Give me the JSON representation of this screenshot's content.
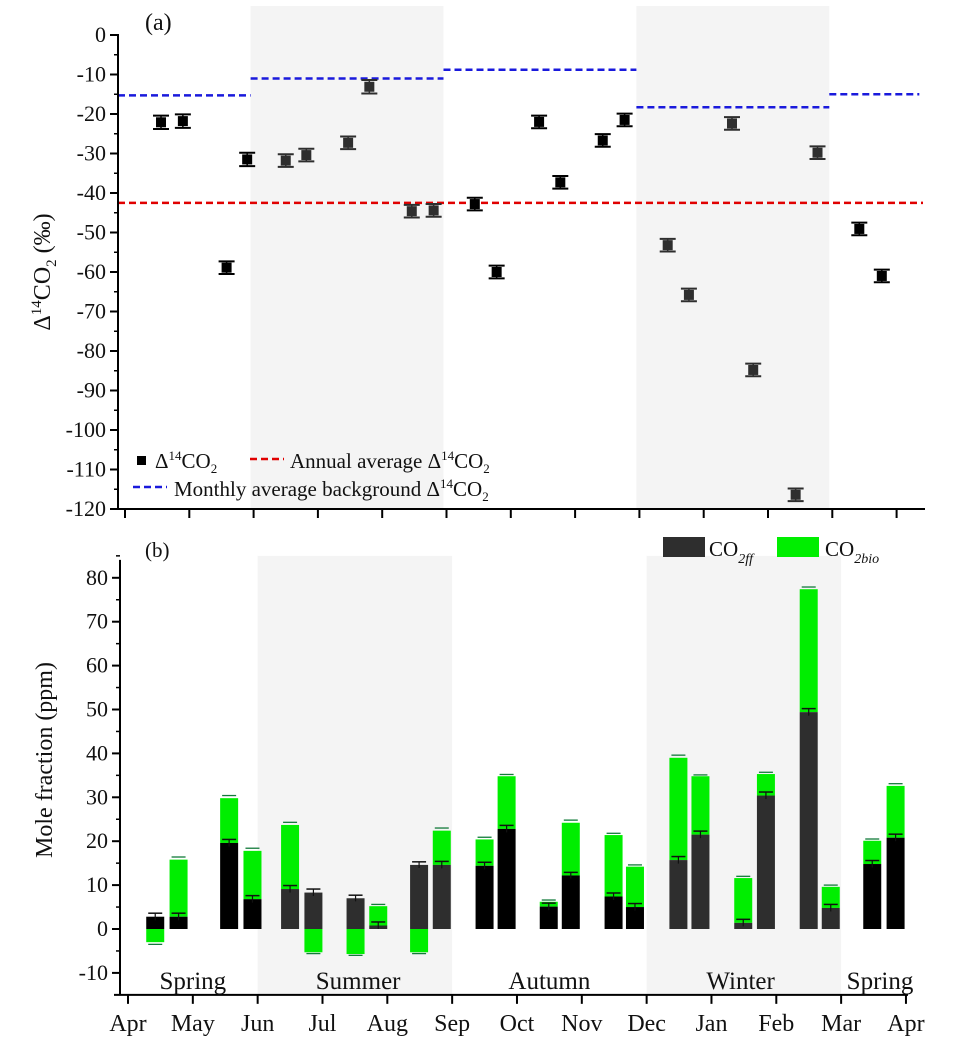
{
  "chart_data": [
    {
      "type": "scatter",
      "panel_label": "(a)",
      "ylabel": "Δ14CO2 (‰)",
      "ylabel_parts": {
        "delta": "Δ",
        "sup": "14",
        "co": "CO",
        "sub": "2",
        "unit": " (‰)"
      },
      "ylim": [
        -120,
        0
      ],
      "yticks": [
        0,
        -10,
        -20,
        -30,
        -40,
        -50,
        -60,
        -70,
        -80,
        -90,
        -100,
        -110,
        -120
      ],
      "x_axis": "month (Apr to Apr)",
      "x_months": [
        "Apr",
        "May",
        "Jun",
        "Jul",
        "Aug",
        "Sep",
        "Oct",
        "Nov",
        "Dec",
        "Jan",
        "Feb",
        "Mar",
        "Apr"
      ],
      "x_range": [
        0,
        12
      ],
      "shaded_seasons": [
        [
          2,
          5
        ],
        [
          8,
          11
        ]
      ],
      "points": {
        "x": [
          0.56,
          0.9,
          1.58,
          1.9,
          2.5,
          2.82,
          3.47,
          3.8,
          4.46,
          4.8,
          5.44,
          5.78,
          6.44,
          6.77,
          7.43,
          7.77,
          8.44,
          8.77,
          9.44,
          9.77,
          10.43,
          10.77,
          11.42,
          11.77
        ],
        "y": [
          -22.1,
          -21.8,
          -58.9,
          -31.5,
          -31.8,
          -30.4,
          -27.3,
          -13.1,
          -44.6,
          -44.4,
          -42.8,
          -60.0,
          -22.0,
          -37.3,
          -26.7,
          -21.5,
          -53.2,
          -65.8,
          -22.4,
          -84.8,
          -116.4,
          -29.8,
          -49.1,
          -61.0
        ],
        "error": [
          1.7,
          1.7,
          1.6,
          1.7,
          1.6,
          1.6,
          1.6,
          1.7,
          1.6,
          1.6,
          1.6,
          1.6,
          1.6,
          1.6,
          1.6,
          1.6,
          1.6,
          1.6,
          1.6,
          1.6,
          1.6,
          1.6,
          1.6,
          1.6
        ],
        "dark_flags": [
          0,
          0,
          0,
          0,
          1,
          1,
          1,
          1,
          1,
          1,
          0,
          0,
          0,
          0,
          0,
          0,
          1,
          1,
          1,
          1,
          1,
          1,
          0,
          0
        ]
      },
      "annual_average": {
        "value": -42.5,
        "color": "#e00000"
      },
      "monthly_background": {
        "color": "#1a1adc",
        "segments": [
          {
            "x": [
              0,
              2
            ],
            "value": -15.3
          },
          {
            "x": [
              2,
              5
            ],
            "value": -11.0
          },
          {
            "x": [
              5,
              8
            ],
            "value": -8.8
          },
          {
            "x": [
              8,
              11
            ],
            "value": -18.3
          },
          {
            "x": [
              11,
              12.4
            ],
            "value": -15.0
          }
        ]
      },
      "legend": [
        {
          "label": "Δ14CO2",
          "parts": {
            "delta": "Δ",
            "sup": "14",
            "co": "CO",
            "sub": "2"
          },
          "marker": "square"
        },
        {
          "label": "Annual average Δ14CO2",
          "parts": {
            "pre": "Annual average Δ",
            "sup": "14",
            "co": "CO",
            "sub": "2"
          },
          "marker": "red-dash"
        },
        {
          "label": "Monthly average background Δ14CO2",
          "parts": {
            "pre": "Monthly average background Δ",
            "sup": "14",
            "co": "CO",
            "sub": "2"
          },
          "marker": "blue-dash"
        }
      ],
      "legend_placement": "bottom-left"
    },
    {
      "type": "bar",
      "stacked": true,
      "panel_label": "(b)",
      "ylabel": "Mole fraction (ppm)",
      "ylim": [
        -15,
        85
      ],
      "yticks": [
        -10,
        0,
        10,
        20,
        30,
        40,
        50,
        60,
        70,
        80
      ],
      "x_months": [
        "Apr",
        "May",
        "Jun",
        "Jul",
        "Aug",
        "Sep",
        "Oct",
        "Nov",
        "Dec",
        "Jan",
        "Feb",
        "Mar",
        "Apr"
      ],
      "x_range": [
        0,
        12
      ],
      "shaded_seasons": [
        [
          2,
          5
        ],
        [
          8,
          11
        ]
      ],
      "seasons": [
        {
          "label": "Spring",
          "x": 1.0
        },
        {
          "label": "Summer",
          "x": 3.55
        },
        {
          "label": "Autumn",
          "x": 6.5
        },
        {
          "label": "Winter",
          "x": 9.45
        },
        {
          "label": "Spring",
          "x": 11.6
        }
      ],
      "bar_x": [
        0.42,
        0.78,
        1.56,
        1.92,
        2.5,
        2.86,
        3.51,
        3.86,
        4.49,
        4.84,
        5.5,
        5.84,
        6.49,
        6.83,
        7.49,
        7.82,
        8.49,
        8.83,
        9.49,
        9.84,
        10.5,
        10.84,
        11.48,
        11.84
      ],
      "series": [
        {
          "name": "CO2ff",
          "color_black": "#000000",
          "color_dark": "#2e2e2e",
          "values": [
            2.8,
            2.8,
            19.6,
            6.8,
            9.1,
            8.3,
            7.0,
            0.8,
            14.6,
            14.6,
            14.4,
            22.8,
            5.1,
            12.2,
            7.4,
            5.0,
            15.7,
            21.5,
            1.4,
            30.4,
            49.4,
            4.8,
            14.8,
            20.8
          ],
          "errors": [
            0.8,
            0.8,
            0.8,
            0.8,
            0.8,
            0.8,
            0.7,
            0.8,
            0.7,
            0.8,
            0.8,
            0.8,
            0.8,
            0.7,
            0.8,
            0.8,
            0.8,
            0.8,
            0.8,
            0.8,
            0.8,
            0.8,
            0.8,
            0.8
          ]
        },
        {
          "name": "CO2bio",
          "color": "#00ee00",
          "values": [
            -3.0,
            13.0,
            10.2,
            11.0,
            14.6,
            -5.3,
            -5.7,
            4.4,
            -5.3,
            7.8,
            6.0,
            12.0,
            1.1,
            12.0,
            14.0,
            9.2,
            23.3,
            13.3,
            10.2,
            4.9,
            28.0,
            4.8,
            5.3,
            11.8
          ],
          "errors": [
            0.5,
            0.6,
            0.6,
            0.6,
            0.6,
            0.3,
            0.3,
            0.4,
            0.3,
            0.6,
            0.5,
            0.4,
            0.4,
            0.6,
            0.4,
            0.4,
            0.6,
            0.3,
            0.4,
            0.4,
            0.5,
            0.4,
            0.4,
            0.5
          ]
        }
      ],
      "dark_flags": [
        0,
        0,
        0,
        0,
        1,
        1,
        1,
        1,
        1,
        1,
        0,
        0,
        0,
        0,
        0,
        0,
        1,
        1,
        1,
        1,
        1,
        1,
        0,
        0
      ],
      "legend": [
        {
          "label": "CO2ff",
          "parts": {
            "co": "CO",
            "sub": "2ff"
          },
          "color": "#2e2e2e"
        },
        {
          "label": "CO2bio",
          "parts": {
            "co": "CO",
            "sub": "2bio"
          },
          "color": "#00ee00"
        }
      ],
      "legend_placement": "top-right"
    }
  ],
  "colors": {
    "shade": "#f4f4f4",
    "axis": "#000000",
    "green": "#00ee00",
    "red": "#e00000",
    "blue": "#1a1adc"
  }
}
